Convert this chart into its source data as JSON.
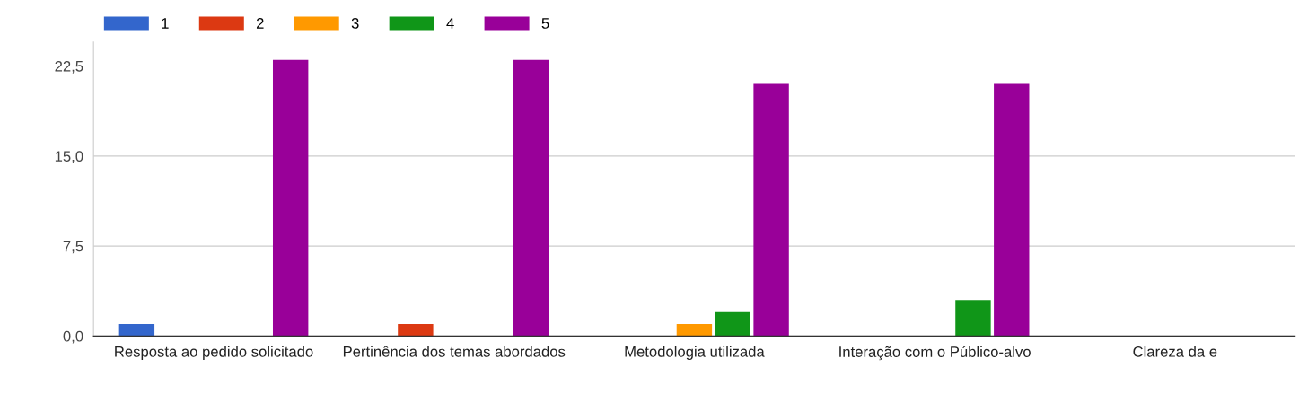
{
  "chart_data": {
    "type": "bar",
    "categories": [
      "Resposta ao pedido solicitado",
      "Pertinência dos temas abordados",
      "Metodologia utilizada",
      "Interação com o Público-alvo",
      "Clareza da e"
    ],
    "series": [
      {
        "name": "1",
        "color": "#3366cc",
        "values": [
          1,
          0,
          0,
          0,
          null
        ]
      },
      {
        "name": "2",
        "color": "#dc3912",
        "values": [
          0,
          1,
          0,
          0,
          null
        ]
      },
      {
        "name": "3",
        "color": "#ff9900",
        "values": [
          0,
          0,
          1,
          0,
          null
        ]
      },
      {
        "name": "4",
        "color": "#109618",
        "values": [
          0,
          0,
          2,
          3,
          null
        ]
      },
      {
        "name": "5",
        "color": "#990099",
        "values": [
          23,
          23,
          21,
          21,
          null
        ]
      }
    ],
    "ylim": [
      0,
      24.5
    ],
    "yticks": [
      {
        "value": 0,
        "label": "0,0"
      },
      {
        "value": 7.5,
        "label": "7,5"
      },
      {
        "value": 15,
        "label": "15,0"
      },
      {
        "value": 22.5,
        "label": "22,5"
      }
    ],
    "grid": "y",
    "legend": "top left"
  }
}
